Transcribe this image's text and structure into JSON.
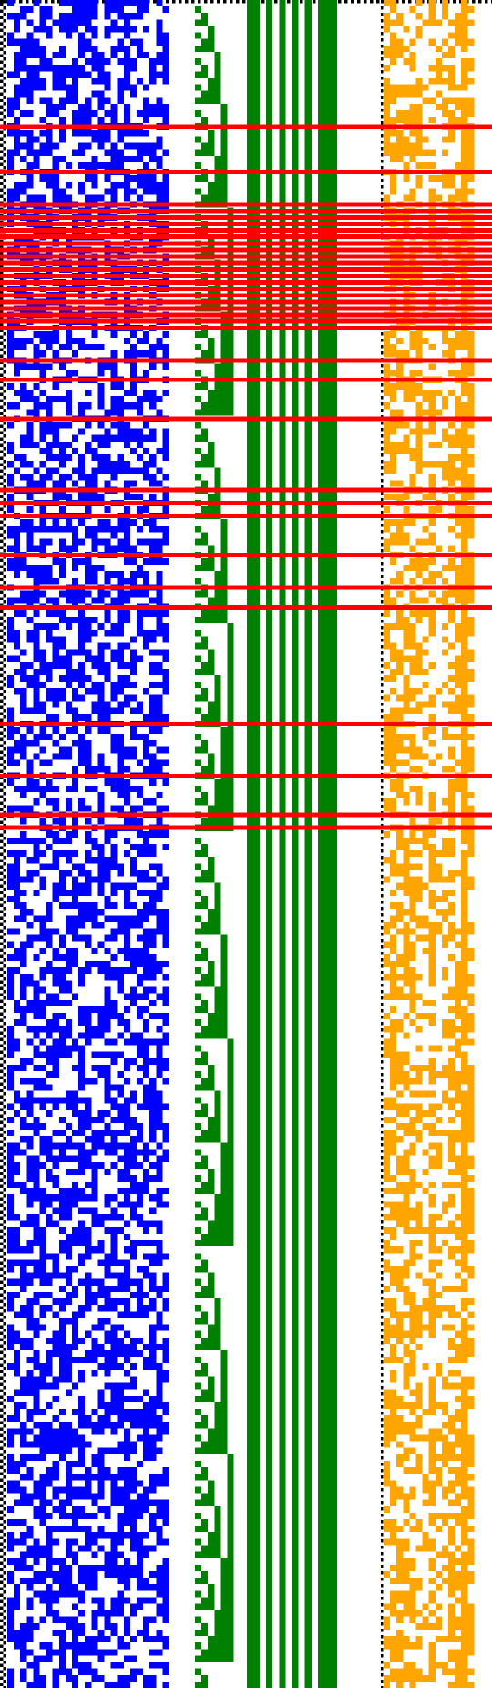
{
  "visualization": {
    "kind": "bit-matrix-visualization",
    "rows": 260,
    "background": "#ffffff",
    "regions": [
      {
        "name": "dotted-border",
        "color": "#000000",
        "pattern": "checker"
      },
      {
        "name": "blue-bit-matrix",
        "color": "#0000ff",
        "columns": 25,
        "fill_fraction": 0.55
      },
      {
        "name": "green-counter-staircase",
        "color": "#008000",
        "columns": 25,
        "bits": 6
      },
      {
        "name": "orange-bit-matrix",
        "color": "#ffa500",
        "columns": 14,
        "fill_fraction": 0.48
      }
    ],
    "green_constant_columns": [
      0,
      1,
      3,
      5,
      7,
      9,
      13
    ],
    "dotted_separator_color": "#000000",
    "highlight": {
      "color": "#ff0000",
      "rows": [
        19,
        26,
        31,
        32,
        33,
        34,
        35,
        36,
        37,
        38,
        39,
        40,
        41,
        42,
        43,
        44,
        45,
        46,
        47,
        48,
        49,
        50,
        55,
        58,
        64,
        75,
        77,
        79,
        85,
        90,
        93,
        111,
        119,
        125,
        127
      ]
    }
  }
}
